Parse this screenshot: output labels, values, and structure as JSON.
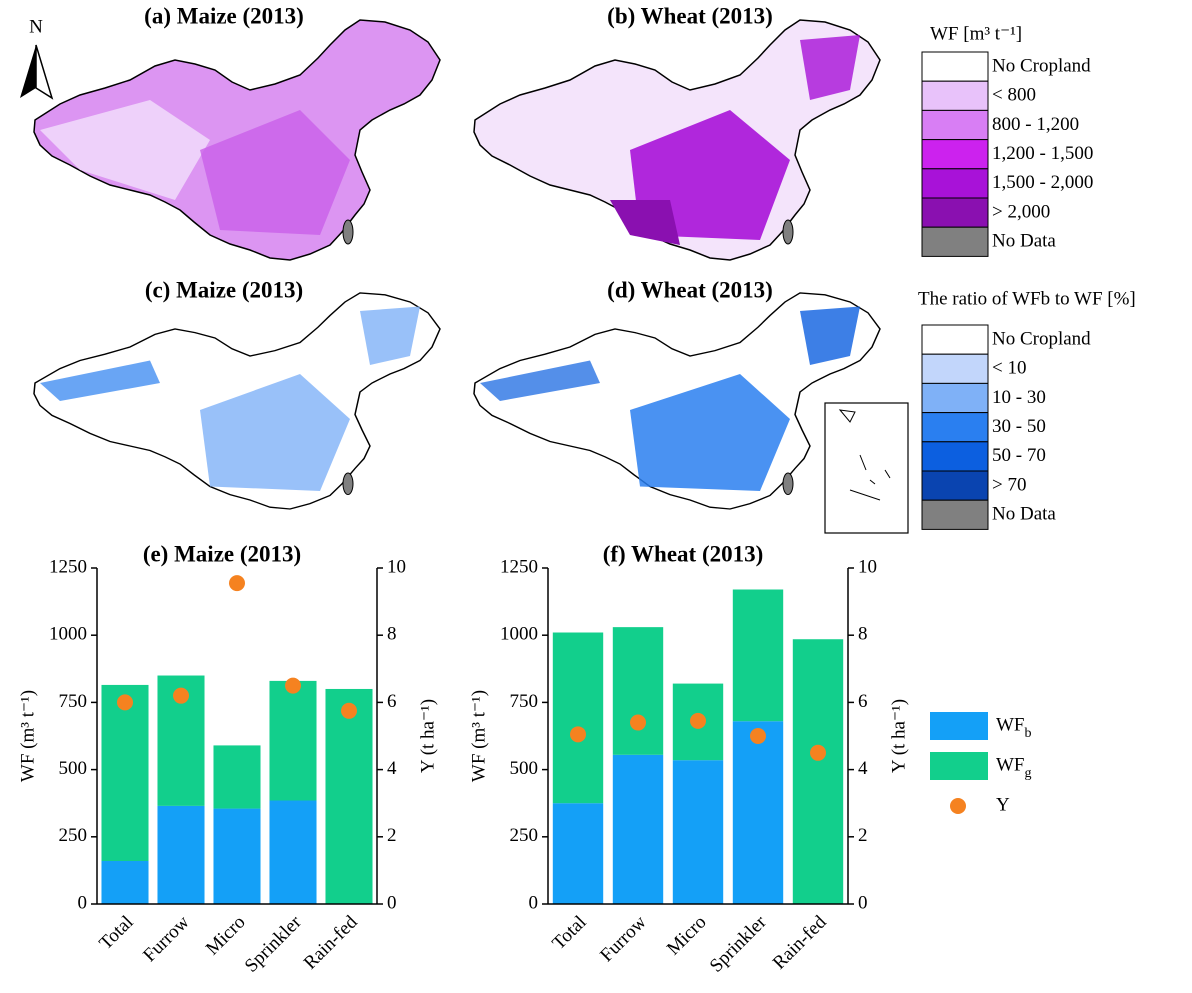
{
  "north_label": "N",
  "maps": {
    "panels": [
      {
        "title": "(a) Maize (2013)"
      },
      {
        "title": "(b) Wheat (2013)"
      },
      {
        "title": "(c) Maize (2013)"
      },
      {
        "title": "(d) Wheat (2013)"
      }
    ],
    "legends": [
      {
        "title": "WF [m³ t⁻¹]",
        "classes": [
          {
            "label": "No Cropland",
            "color": "#ffffff"
          },
          {
            "label": "< 800",
            "color": "#e8c2fa"
          },
          {
            "label": "800 - 1,200",
            "color": "#d87ef4"
          },
          {
            "label": "1,200 - 1,500",
            "color": "#cc22ee"
          },
          {
            "label": "1,500 - 2,000",
            "color": "#a812d8"
          },
          {
            "label": "> 2,000",
            "color": "#8a10b0"
          },
          {
            "label": "No Data",
            "color": "#808080"
          }
        ]
      },
      {
        "title": "The ratio of WFb to WF [%]",
        "classes": [
          {
            "label": "No Cropland",
            "color": "#ffffff"
          },
          {
            "label": "< 10",
            "color": "#c2d6fb"
          },
          {
            "label": "10 - 30",
            "color": "#7fb1f7"
          },
          {
            "label": "30 - 50",
            "color": "#2a7ff0"
          },
          {
            "label": "50 - 70",
            "color": "#0c5fe0"
          },
          {
            "label": "> 70",
            "color": "#0a44b0"
          },
          {
            "label": "No Data",
            "color": "#808080"
          }
        ]
      }
    ]
  },
  "chart_data": [
    {
      "type": "bar",
      "stacked": true,
      "title": "(e) Maize (2013)",
      "categories": [
        "Total",
        "Furrow",
        "Micro",
        "Sprinkler",
        "Rain-fed"
      ],
      "ylabel": "WF (m³ t⁻¹)",
      "y2label": "Y (t ha⁻¹)",
      "ylim": [
        0,
        1250
      ],
      "yticks": [
        0,
        250,
        500,
        750,
        1000,
        1250
      ],
      "y2lim": [
        0,
        10
      ],
      "y2ticks": [
        0,
        2,
        4,
        6,
        8,
        10
      ],
      "series": [
        {
          "name": "WFb",
          "color": "#14a0f7",
          "values": [
            160,
            365,
            355,
            385,
            0
          ]
        },
        {
          "name": "WFg",
          "color": "#12cf8c",
          "values": [
            655,
            485,
            235,
            445,
            800
          ]
        },
        {
          "name": "Y",
          "type": "scatter",
          "axis": "y2",
          "color": "#f58220",
          "values": [
            6.0,
            6.2,
            9.55,
            6.5,
            5.75
          ]
        }
      ]
    },
    {
      "type": "bar",
      "stacked": true,
      "title": "(f) Wheat (2013)",
      "categories": [
        "Total",
        "Furrow",
        "Micro",
        "Sprinkler",
        "Rain-fed"
      ],
      "ylabel": "WF (m³ t⁻¹)",
      "y2label": "Y (t ha⁻¹)",
      "ylim": [
        0,
        1250
      ],
      "yticks": [
        0,
        250,
        500,
        750,
        1000,
        1250
      ],
      "y2lim": [
        0,
        10
      ],
      "y2ticks": [
        0,
        2,
        4,
        6,
        8,
        10
      ],
      "series": [
        {
          "color": "#14a0f7",
          "values": [
            375,
            555,
            535,
            680,
            0
          ]
        },
        {
          "color": "#12cf8c",
          "values": [
            635,
            475,
            285,
            490,
            985
          ]
        },
        {
          "type": "scatter",
          "axis": "y2",
          "color": "#f58220",
          "values": [
            5.05,
            5.4,
            5.45,
            5.0,
            4.5
          ]
        }
      ]
    }
  ]
}
